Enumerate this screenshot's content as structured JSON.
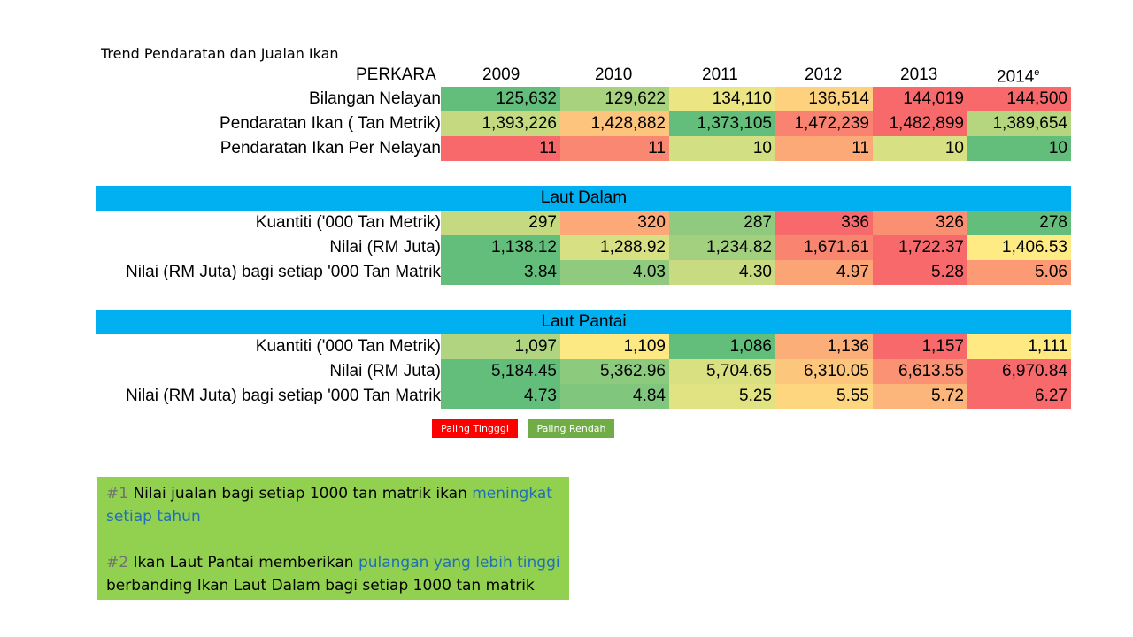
{
  "title": "Trend Pendaratan dan Jualan Ikan",
  "header": {
    "item": "PERKARA",
    "years": [
      "2009",
      "2010",
      "2011",
      "2012",
      "2013",
      "2014"
    ],
    "last_year_sup": "e"
  },
  "colors": {
    "high": "#f8696b",
    "low": "#63be7b",
    "band": "#00b0f0",
    "note_bg": "#92d050"
  },
  "summary": {
    "rows": [
      {
        "label": "Bilangan Nelayan",
        "values": [
          "125,632",
          "129,622",
          "134,110",
          "136,514",
          "144,019",
          "144,500"
        ],
        "colors": [
          "#63be7b",
          "#a9d27f",
          "#ebe584",
          "#fed17f",
          "#f8696b",
          "#f8696b"
        ]
      },
      {
        "label": "Pendaratan Ikan ( Tan Metrik)",
        "values": [
          "1,393,226",
          "1,428,882",
          "1,373,105",
          "1,472,239",
          "1,482,899",
          "1,389,654"
        ],
        "colors": [
          "#c4d980",
          "#fdc47d",
          "#63be7b",
          "#f98370",
          "#f8696b",
          "#b5d57f"
        ]
      },
      {
        "label": "Pendaratan Ikan Per Nelayan",
        "values": [
          "11",
          "11",
          "10",
          "11",
          "10",
          "10"
        ],
        "colors": [
          "#f8696b",
          "#fa8771",
          "#d2df82",
          "#fca877",
          "#d7e082",
          "#63be7b"
        ]
      }
    ]
  },
  "laut_dalam": {
    "title": "Laut Dalam",
    "rows": [
      {
        "label": "Kuantiti ('000 Tan Metrik)",
        "values": [
          "297",
          "320",
          "287",
          "336",
          "326",
          "278"
        ],
        "colors": [
          "#c4d980",
          "#fca877",
          "#8fca7e",
          "#f8696b",
          "#fa8f72",
          "#63be7b"
        ]
      },
      {
        "label": "Nilai (RM Juta)",
        "values": [
          "1,138.12",
          "1,288.92",
          "1,234.82",
          "1,671.61",
          "1,722.37",
          "1,406.53"
        ],
        "colors": [
          "#63be7b",
          "#d7e082",
          "#a2d07f",
          "#f98570",
          "#f8696b",
          "#ffeb84"
        ]
      },
      {
        "label": "Nilai (RM Juta) bagi setiap '000 Tan Matrik",
        "values": [
          "3.84",
          "4.03",
          "4.30",
          "4.97",
          "5.28",
          "5.06"
        ],
        "colors": [
          "#63be7b",
          "#8fca7e",
          "#c9db81",
          "#fba475",
          "#f8696b",
          "#fb9a74"
        ]
      }
    ]
  },
  "laut_pantai": {
    "title": "Laut Pantai",
    "rows": [
      {
        "label": "Kuantiti ('000 Tan Metrik)",
        "values": [
          "1,097",
          "1,109",
          "1,086",
          "1,136",
          "1,157",
          "1,111"
        ],
        "colors": [
          "#b0d47f",
          "#fde984",
          "#63be7b",
          "#fbae78",
          "#f8696b",
          "#fee983"
        ]
      },
      {
        "label": "Nilai (RM Juta)",
        "values": [
          "5,184.45",
          "5,362.96",
          "5,704.65",
          "6,310.05",
          "6,613.55",
          "6,970.84"
        ],
        "colors": [
          "#63be7b",
          "#8ccb7e",
          "#d8e082",
          "#fdc67d",
          "#fa9273",
          "#f8696b"
        ]
      },
      {
        "label": "Nilai (RM Juta) bagi setiap '000 Tan Matrik",
        "values": [
          "4.73",
          "4.84",
          "5.25",
          "5.55",
          "5.72",
          "6.27"
        ],
        "colors": [
          "#63be7b",
          "#80c67d",
          "#e1e383",
          "#fed680",
          "#fcb57a",
          "#f8696b"
        ]
      }
    ]
  },
  "legend": {
    "high": {
      "label": "Paling Tingggi",
      "color": "#ff0000"
    },
    "low": {
      "label": "Paling Rendah",
      "color": "#70ad47"
    }
  },
  "notes": [
    {
      "num": "#1",
      "text1": " Nilai jualan bagi setiap 1000 tan matrik ikan ",
      "highlight": "meningkat setiap tahun",
      "text2": ""
    },
    {
      "num": "#2",
      "text1": " Ikan Laut Pantai memberikan ",
      "highlight": "pulangan yang lebih tinggi",
      "text2": " berbanding  Ikan Laut Dalam bagi setiap 1000 tan matrik"
    }
  ]
}
